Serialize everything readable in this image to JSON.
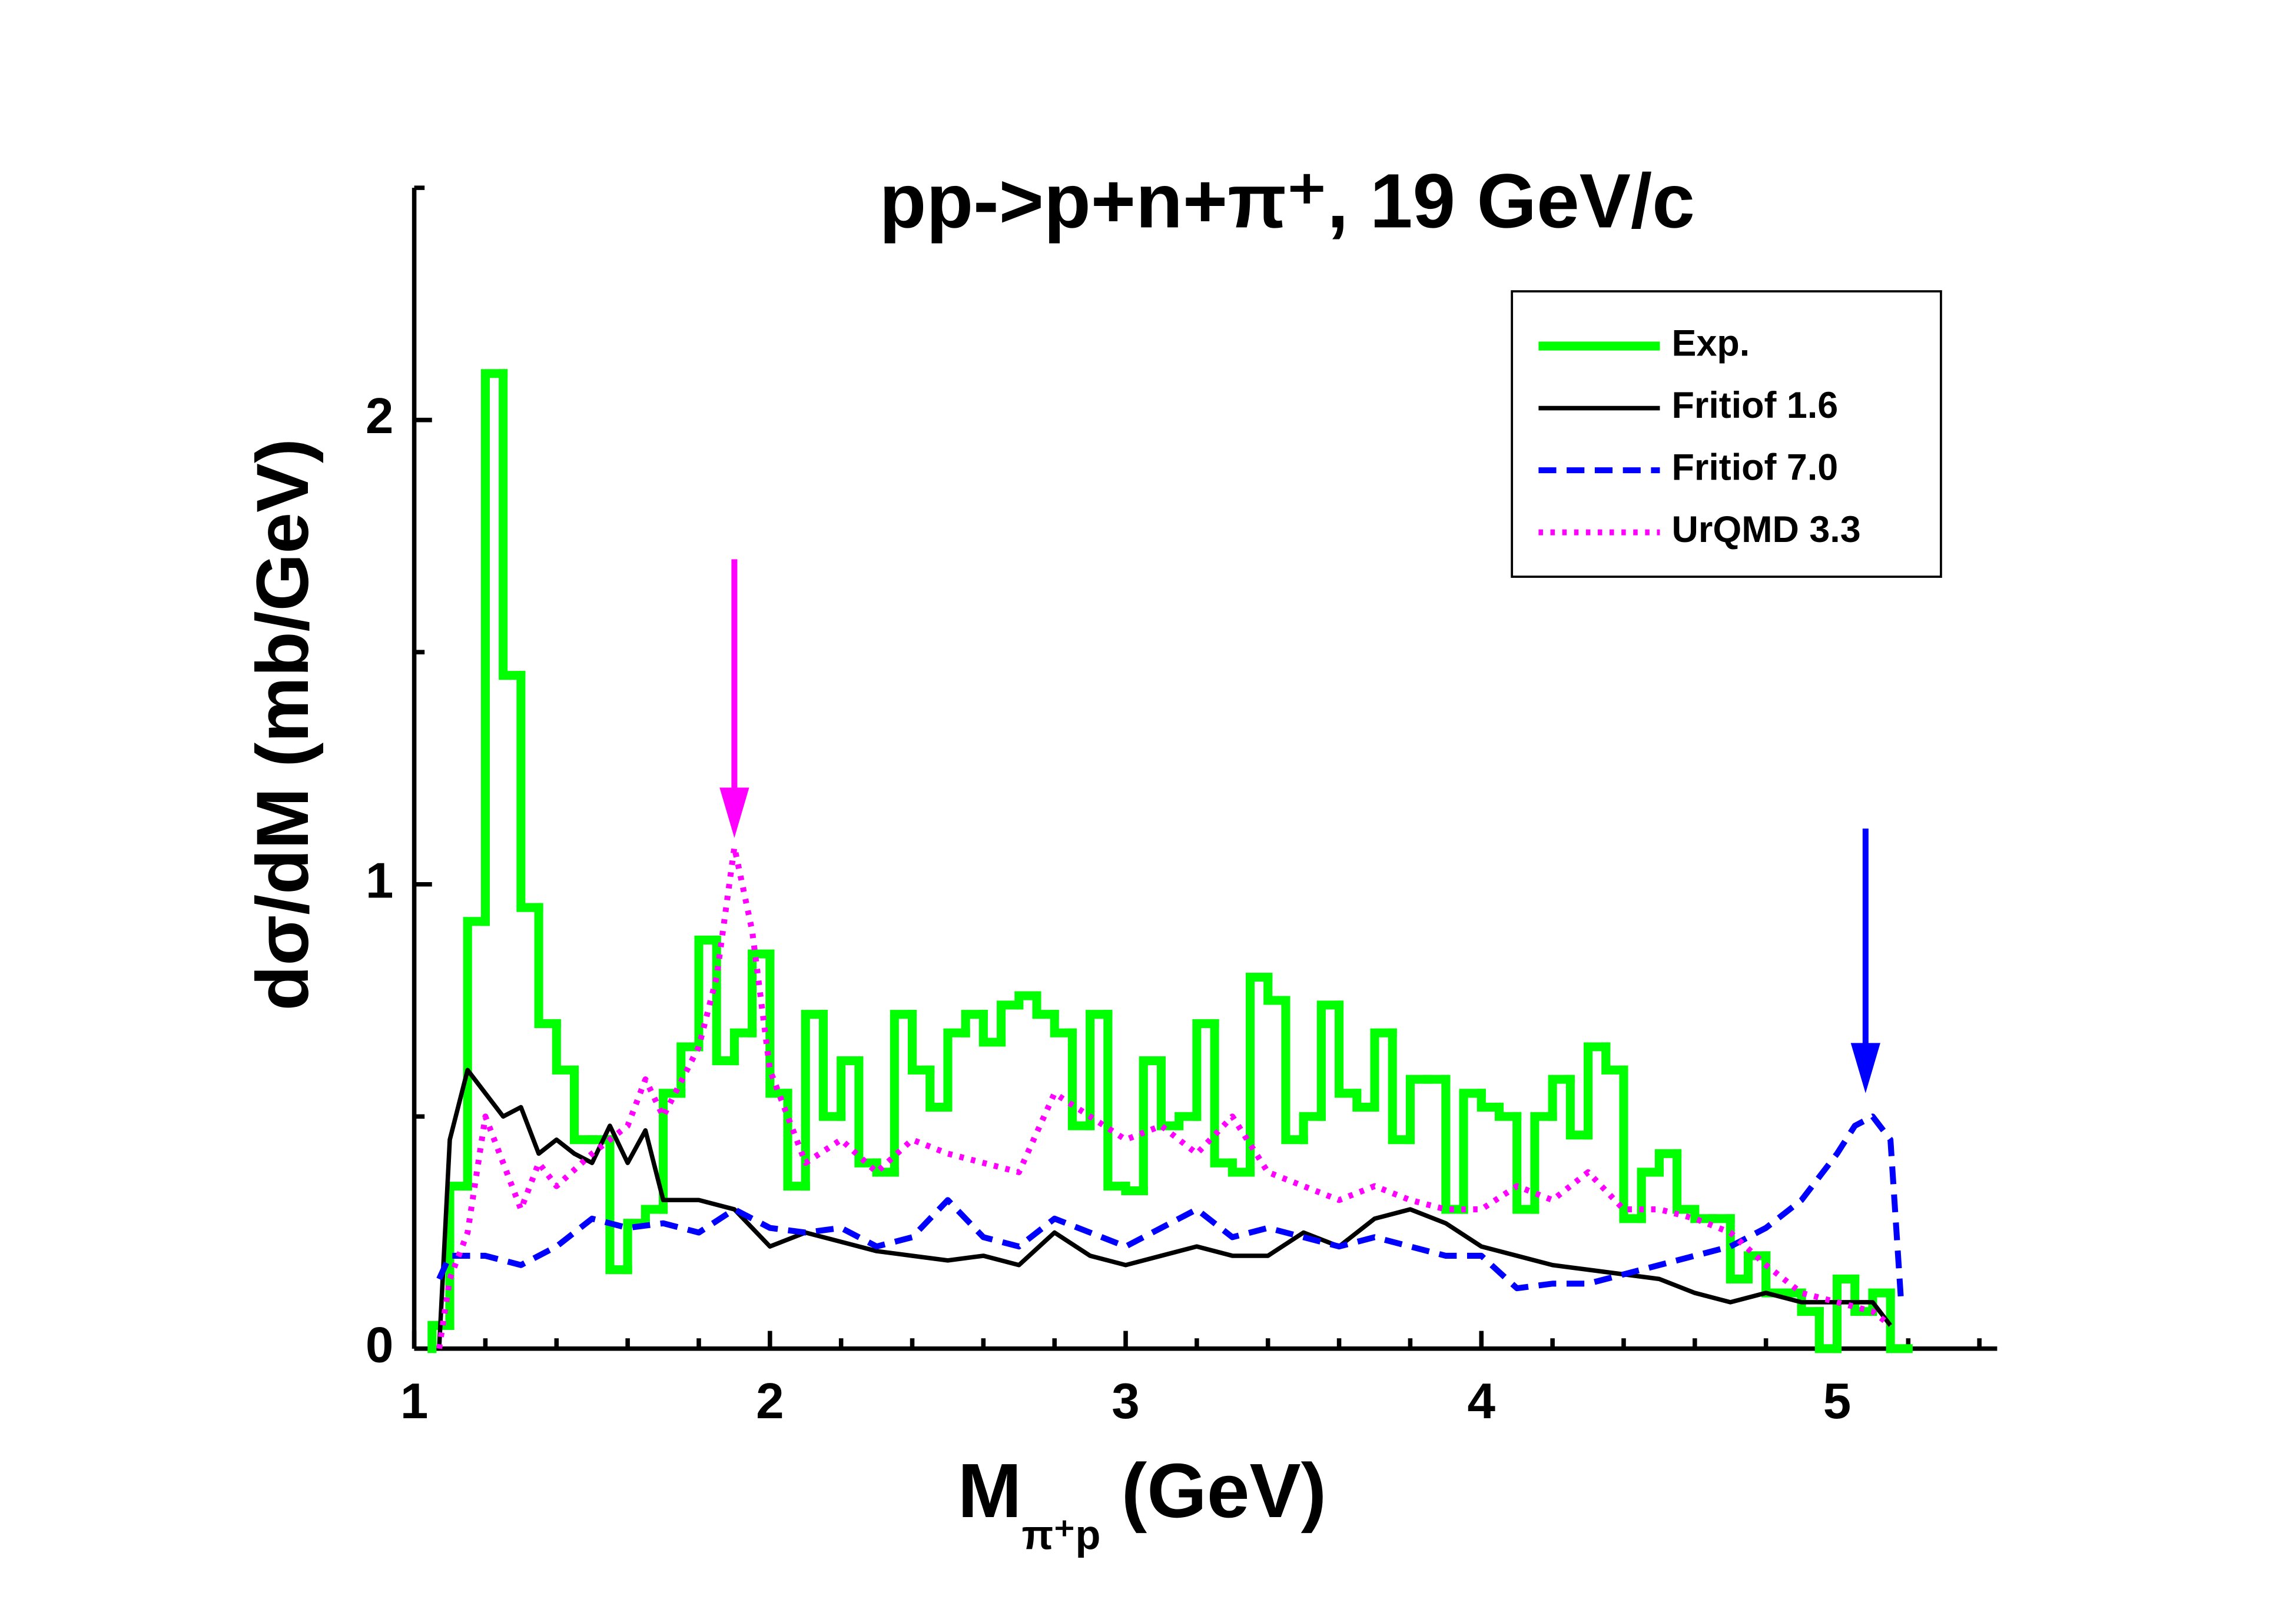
{
  "chart_data": {
    "type": "line",
    "title": "pp->p+n+π⁺, 19 GeV/c",
    "x_label": {
      "main": "M",
      "sub": "π⁺p",
      "unit": "(GeV)"
    },
    "y_label": "dσ/dM (mb/GeV)",
    "xlim": [
      1,
      5.45
    ],
    "ylim": [
      0,
      2.5
    ],
    "xticks": [
      1,
      2,
      3,
      4,
      5
    ],
    "yticks": [
      0,
      1,
      2
    ],
    "x_minor_ticks": [
      1.2,
      1.4,
      1.6,
      1.8,
      2.2,
      2.4,
      2.6,
      2.8,
      3.2,
      3.4,
      3.6,
      3.8,
      4.2,
      4.4,
      4.6,
      4.8,
      5.2,
      5.4
    ],
    "y_minor_ticks": [
      0.5,
      1.5,
      2.5
    ],
    "legend": "upper right",
    "series": [
      {
        "name": "Exp.",
        "color": "#00ff00",
        "style": "step",
        "bins": [
          1.05,
          1.1,
          1.15,
          1.2,
          1.25,
          1.3,
          1.35,
          1.4,
          1.45,
          1.5,
          1.55,
          1.6,
          1.65,
          1.7,
          1.75,
          1.8,
          1.85,
          1.9,
          1.95,
          2.0,
          2.05,
          2.1,
          2.15,
          2.2,
          2.25,
          2.3,
          2.35,
          2.4,
          2.45,
          2.5,
          2.55,
          2.6,
          2.65,
          2.7,
          2.75,
          2.8,
          2.85,
          2.9,
          2.95,
          3.0,
          3.05,
          3.1,
          3.15,
          3.2,
          3.25,
          3.3,
          3.35,
          3.4,
          3.45,
          3.5,
          3.55,
          3.6,
          3.65,
          3.7,
          3.75,
          3.8,
          3.85,
          3.9,
          3.95,
          4.0,
          4.05,
          4.1,
          4.15,
          4.2,
          4.25,
          4.3,
          4.35,
          4.4,
          4.45,
          4.5,
          4.55,
          4.6,
          4.65,
          4.7,
          4.75,
          4.8,
          4.85,
          4.9,
          4.95,
          5.0,
          5.05,
          5.1,
          5.15,
          5.2
        ],
        "values": [
          0.05,
          0.35,
          0.92,
          2.1,
          1.45,
          0.95,
          0.7,
          0.6,
          0.45,
          0.45,
          0.17,
          0.27,
          0.3,
          0.55,
          0.65,
          0.88,
          0.62,
          0.68,
          0.85,
          0.55,
          0.35,
          0.72,
          0.5,
          0.62,
          0.4,
          0.38,
          0.72,
          0.6,
          0.52,
          0.68,
          0.72,
          0.66,
          0.74,
          0.76,
          0.72,
          0.68,
          0.48,
          0.72,
          0.35,
          0.34,
          0.62,
          0.48,
          0.5,
          0.7,
          0.4,
          0.38,
          0.8,
          0.75,
          0.45,
          0.5,
          0.74,
          0.55,
          0.52,
          0.68,
          0.45,
          0.58,
          0.58,
          0.3,
          0.55,
          0.52,
          0.5,
          0.3,
          0.5,
          0.58,
          0.46,
          0.65,
          0.6,
          0.28,
          0.38,
          0.42,
          0.3,
          0.28,
          0.28,
          0.15,
          0.2,
          0.12,
          0.12,
          0.08,
          0.0,
          0.15,
          0.08,
          0.12,
          0.0
        ]
      },
      {
        "name": "Fritiof 1.6",
        "color": "#000000",
        "style": "solid",
        "x": [
          1.07,
          1.1,
          1.15,
          1.2,
          1.25,
          1.3,
          1.35,
          1.4,
          1.45,
          1.5,
          1.55,
          1.6,
          1.65,
          1.7,
          1.8,
          1.9,
          2.0,
          2.1,
          2.2,
          2.3,
          2.4,
          2.5,
          2.6,
          2.7,
          2.8,
          2.9,
          3.0,
          3.1,
          3.2,
          3.3,
          3.4,
          3.5,
          3.6,
          3.7,
          3.8,
          3.9,
          4.0,
          4.1,
          4.2,
          4.3,
          4.4,
          4.5,
          4.6,
          4.7,
          4.8,
          4.9,
          5.0,
          5.1,
          5.15
        ],
        "values": [
          0,
          0.45,
          0.6,
          0.55,
          0.5,
          0.52,
          0.42,
          0.45,
          0.42,
          0.4,
          0.48,
          0.4,
          0.47,
          0.32,
          0.32,
          0.3,
          0.22,
          0.25,
          0.23,
          0.21,
          0.2,
          0.19,
          0.2,
          0.18,
          0.25,
          0.2,
          0.18,
          0.2,
          0.22,
          0.2,
          0.2,
          0.25,
          0.22,
          0.28,
          0.3,
          0.27,
          0.22,
          0.2,
          0.18,
          0.17,
          0.16,
          0.15,
          0.12,
          0.1,
          0.12,
          0.1,
          0.1,
          0.1,
          0.05
        ]
      },
      {
        "name": "Fritiof 7.0",
        "color": "#0000ff",
        "style": "dashed",
        "x": [
          1.07,
          1.1,
          1.2,
          1.3,
          1.4,
          1.5,
          1.6,
          1.7,
          1.8,
          1.9,
          2.0,
          2.1,
          2.2,
          2.3,
          2.4,
          2.5,
          2.6,
          2.7,
          2.8,
          2.9,
          3.0,
          3.1,
          3.2,
          3.3,
          3.4,
          3.5,
          3.6,
          3.7,
          3.8,
          3.9,
          4.0,
          4.1,
          4.2,
          4.3,
          4.4,
          4.5,
          4.6,
          4.7,
          4.8,
          4.9,
          5.0,
          5.05,
          5.1,
          5.15,
          5.18
        ],
        "values": [
          0.15,
          0.2,
          0.2,
          0.18,
          0.22,
          0.28,
          0.26,
          0.27,
          0.25,
          0.3,
          0.26,
          0.25,
          0.26,
          0.22,
          0.24,
          0.32,
          0.24,
          0.22,
          0.28,
          0.25,
          0.22,
          0.26,
          0.3,
          0.24,
          0.26,
          0.24,
          0.22,
          0.24,
          0.22,
          0.2,
          0.2,
          0.13,
          0.14,
          0.14,
          0.16,
          0.18,
          0.2,
          0.22,
          0.26,
          0.32,
          0.42,
          0.48,
          0.5,
          0.45,
          0.1
        ]
      },
      {
        "name": "UrQMD 3.3",
        "color": "#ff00ff",
        "style": "dotted",
        "x": [
          1.07,
          1.1,
          1.15,
          1.2,
          1.25,
          1.3,
          1.35,
          1.4,
          1.5,
          1.6,
          1.65,
          1.7,
          1.8,
          1.85,
          1.9,
          1.95,
          2.0,
          2.1,
          2.2,
          2.3,
          2.4,
          2.5,
          2.6,
          2.7,
          2.8,
          2.9,
          3.0,
          3.1,
          3.2,
          3.3,
          3.4,
          3.5,
          3.6,
          3.7,
          3.8,
          3.9,
          4.0,
          4.1,
          4.2,
          4.3,
          4.4,
          4.5,
          4.6,
          4.7,
          4.8,
          4.9,
          5.0,
          5.1,
          5.15
        ],
        "values": [
          0,
          0.15,
          0.25,
          0.5,
          0.4,
          0.3,
          0.4,
          0.35,
          0.42,
          0.48,
          0.58,
          0.5,
          0.65,
          0.8,
          1.08,
          0.9,
          0.6,
          0.4,
          0.45,
          0.38,
          0.45,
          0.42,
          0.4,
          0.38,
          0.55,
          0.5,
          0.45,
          0.48,
          0.42,
          0.5,
          0.38,
          0.35,
          0.32,
          0.35,
          0.32,
          0.3,
          0.3,
          0.35,
          0.32,
          0.38,
          0.3,
          0.3,
          0.28,
          0.25,
          0.18,
          0.12,
          0.1,
          0.08,
          0.05
        ]
      }
    ],
    "arrows": [
      {
        "x": 1.9,
        "from": 1.7,
        "to": 1.1,
        "color": "#ff00ff"
      },
      {
        "x": 5.08,
        "from": 1.12,
        "to": 0.55,
        "color": "#0000ff"
      }
    ]
  }
}
